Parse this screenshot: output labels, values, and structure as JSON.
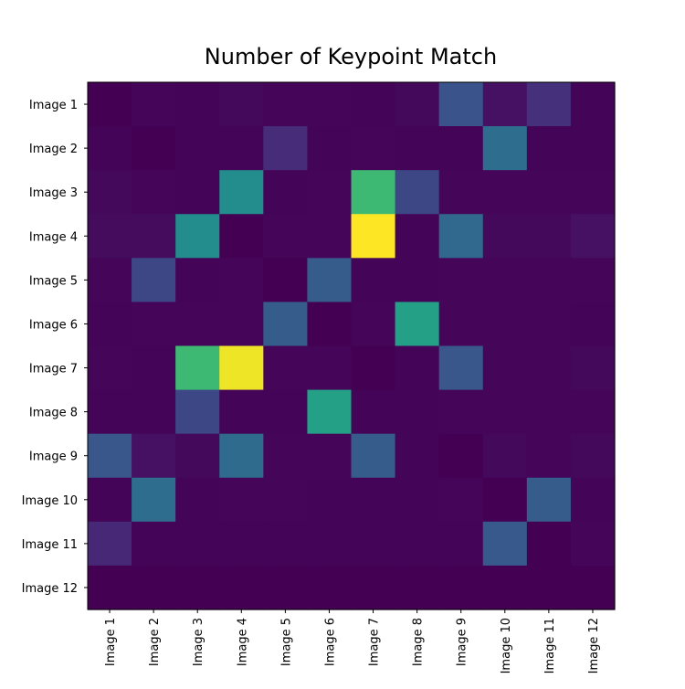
{
  "chart_data": {
    "type": "heatmap",
    "title": "Number of Keypoint Match",
    "xlabel": "",
    "ylabel": "",
    "colormap": "viridis",
    "value_scale": "relative intensity (0 = darkest, 1 = brightest)",
    "x_categories": [
      "Image 1",
      "Image 2",
      "Image 3",
      "Image 4",
      "Image 5",
      "Image 6",
      "Image 7",
      "Image 8",
      "Image 9",
      "Image 10",
      "Image 11",
      "Image 12"
    ],
    "y_categories": [
      "Image 1",
      "Image 2",
      "Image 3",
      "Image 4",
      "Image 5",
      "Image 6",
      "Image 7",
      "Image 8",
      "Image 9",
      "Image 10",
      "Image 11",
      "Image 12"
    ],
    "values": [
      [
        0.0,
        0.02,
        0.01,
        0.03,
        0.02,
        0.02,
        0.01,
        0.03,
        0.26,
        0.06,
        0.16,
        0.01
      ],
      [
        0.01,
        0.0,
        0.01,
        0.01,
        0.15,
        0.01,
        0.02,
        0.01,
        0.01,
        0.36,
        0.01,
        0.01
      ],
      [
        0.03,
        0.02,
        0.01,
        0.48,
        0.01,
        0.02,
        0.68,
        0.22,
        0.02,
        0.02,
        0.02,
        0.02
      ],
      [
        0.04,
        0.04,
        0.48,
        0.0,
        0.02,
        0.02,
        1.0,
        0.01,
        0.34,
        0.03,
        0.03,
        0.06
      ],
      [
        0.02,
        0.22,
        0.01,
        0.02,
        0.0,
        0.29,
        0.01,
        0.01,
        0.02,
        0.02,
        0.02,
        0.02
      ],
      [
        0.01,
        0.02,
        0.02,
        0.02,
        0.29,
        0.0,
        0.02,
        0.57,
        0.02,
        0.02,
        0.02,
        0.01
      ],
      [
        0.02,
        0.01,
        0.68,
        0.98,
        0.02,
        0.02,
        0.0,
        0.01,
        0.27,
        0.02,
        0.02,
        0.03
      ],
      [
        0.01,
        0.01,
        0.22,
        0.01,
        0.01,
        0.57,
        0.01,
        0.01,
        0.02,
        0.02,
        0.02,
        0.02
      ],
      [
        0.27,
        0.06,
        0.03,
        0.35,
        0.02,
        0.02,
        0.29,
        0.01,
        0.0,
        0.03,
        0.02,
        0.03
      ],
      [
        0.01,
        0.36,
        0.01,
        0.02,
        0.02,
        0.01,
        0.01,
        0.01,
        0.02,
        0.0,
        0.29,
        0.01
      ],
      [
        0.14,
        0.01,
        0.01,
        0.01,
        0.01,
        0.01,
        0.01,
        0.01,
        0.01,
        0.28,
        0.0,
        0.02
      ],
      [
        0.0,
        0.0,
        0.0,
        0.0,
        0.0,
        0.0,
        0.0,
        0.0,
        0.0,
        0.0,
        0.0,
        0.0
      ]
    ],
    "grid": false,
    "legend": "none"
  }
}
